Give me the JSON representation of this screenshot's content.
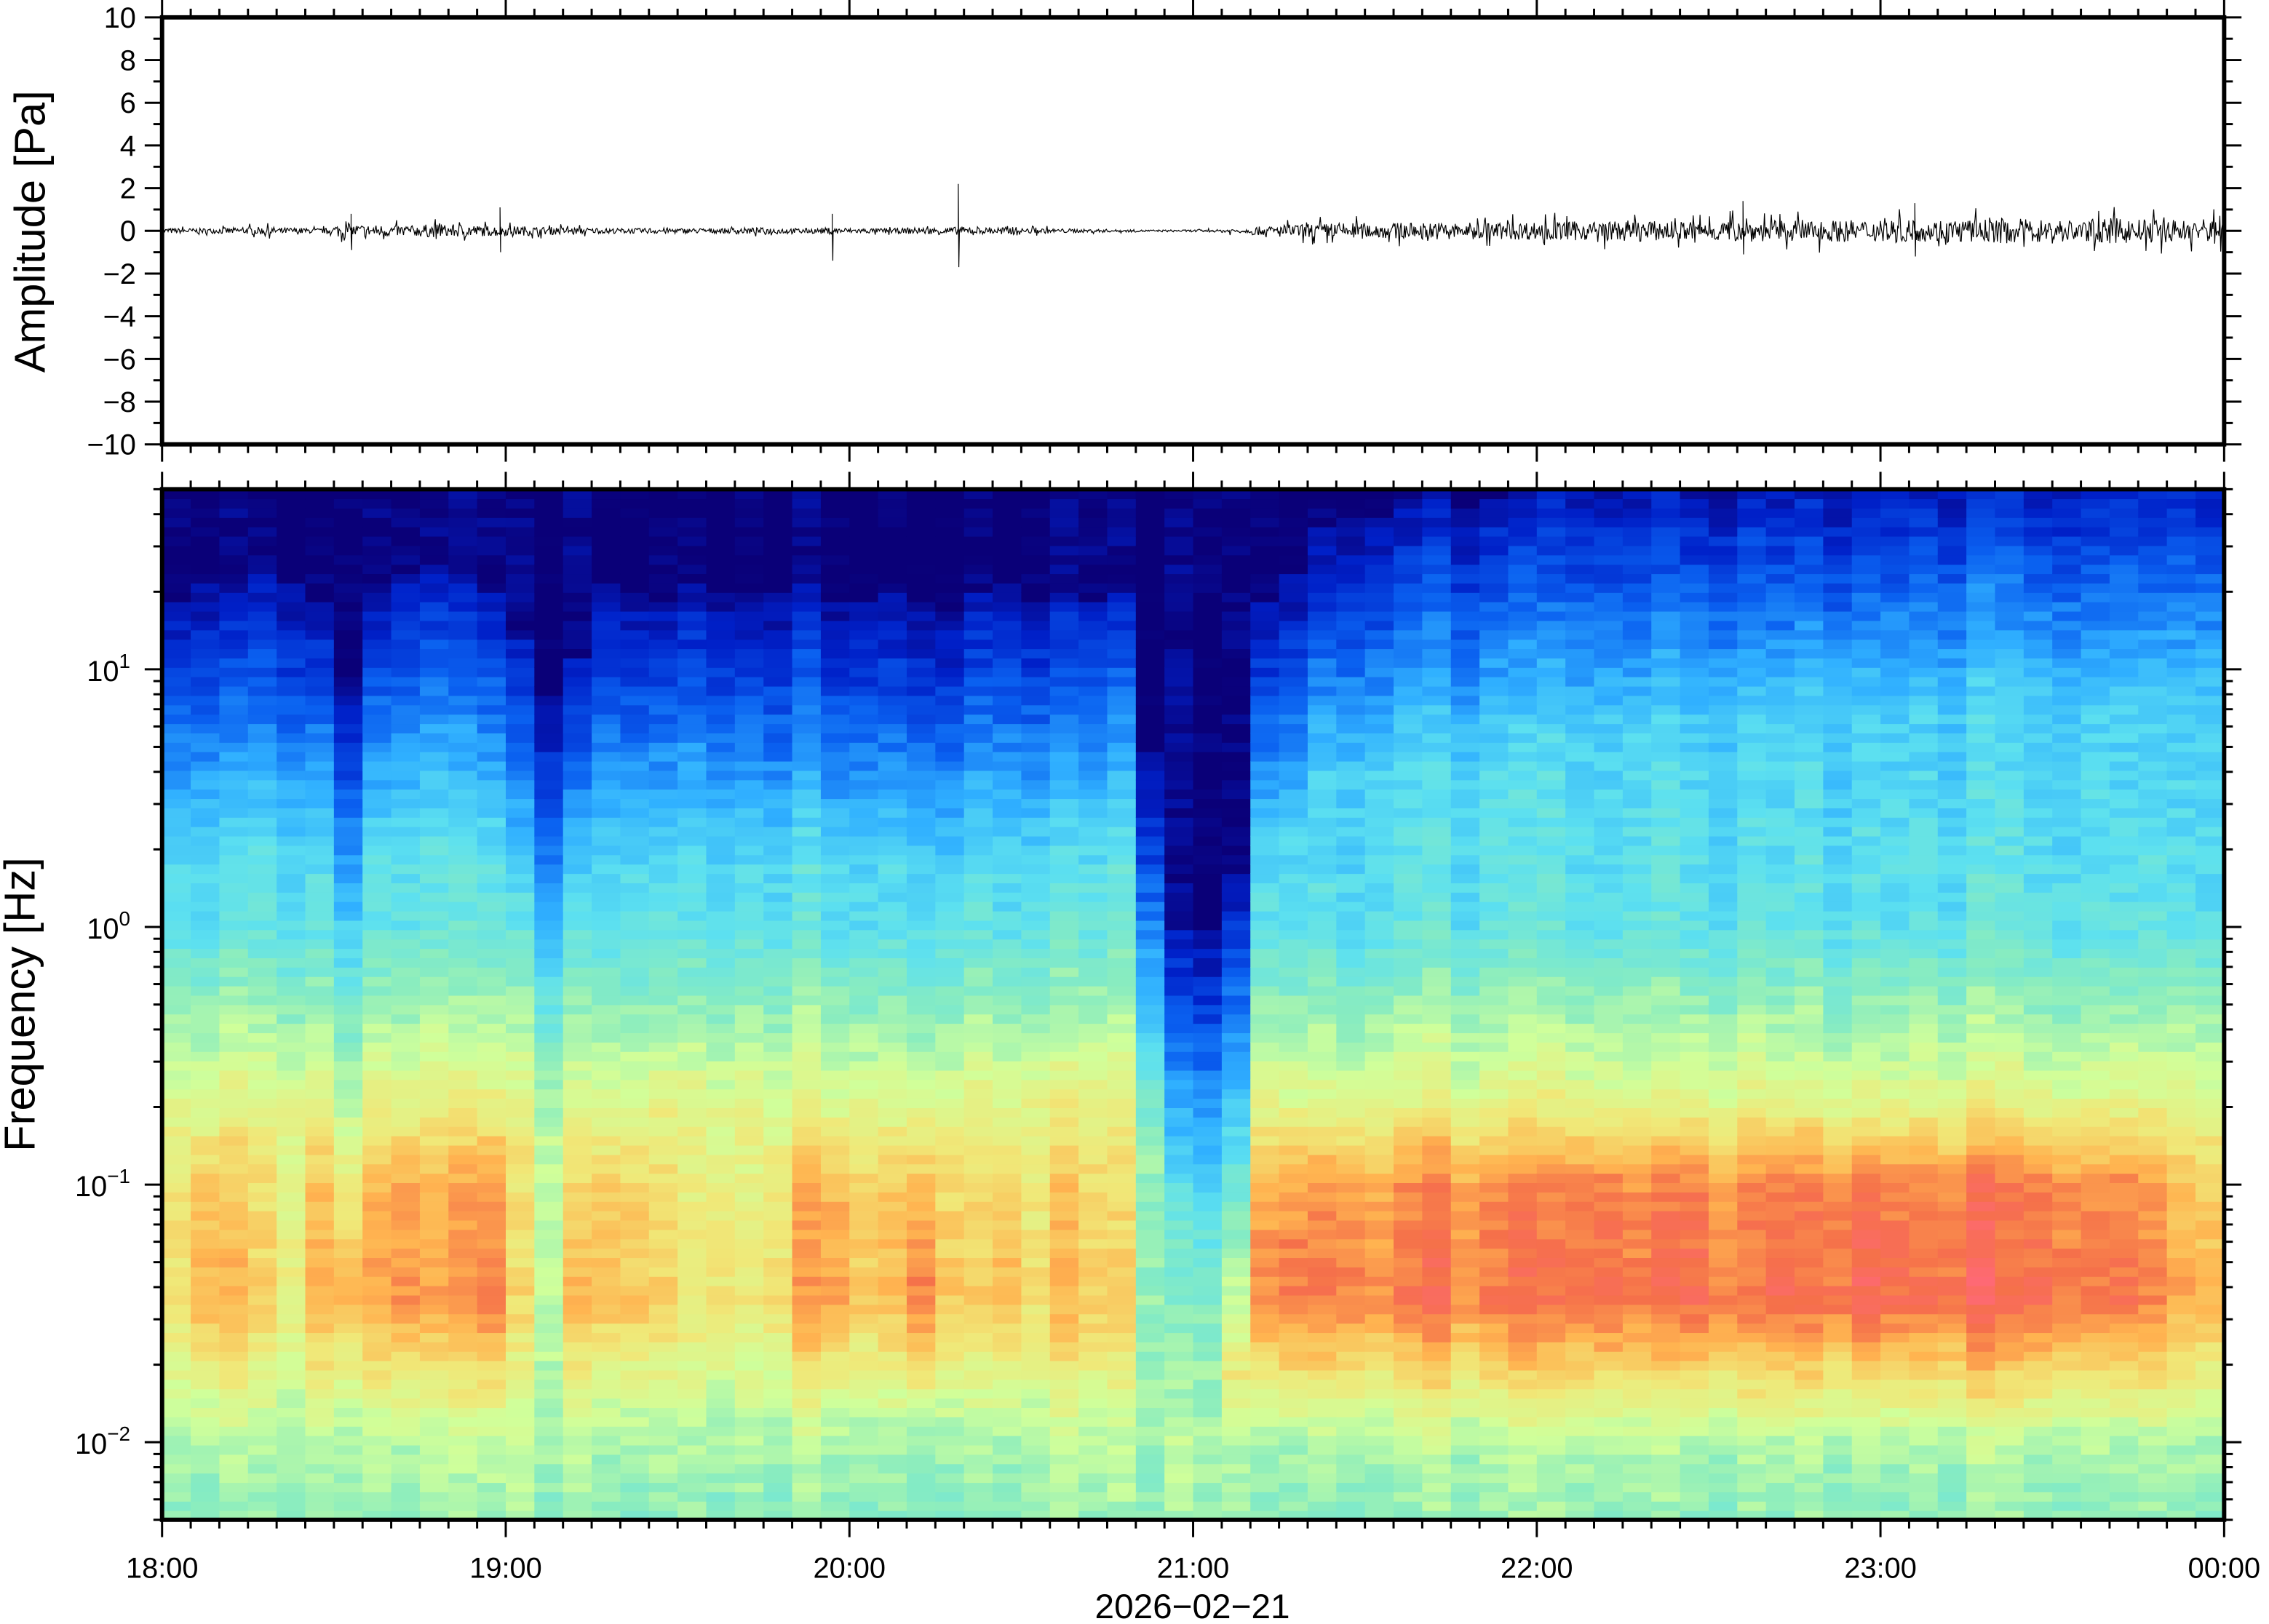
{
  "chart_data": [
    {
      "type": "line",
      "ylabel": "Amplitude [Pa]",
      "ylim": [
        -10,
        10
      ],
      "yticks": [
        "10",
        "8",
        "6",
        "4",
        "2",
        "0",
        "−2",
        "−4",
        "−6",
        "−8",
        "−10"
      ],
      "yticks_values": [
        10,
        8,
        6,
        4,
        2,
        0,
        -2,
        -4,
        -6,
        -8,
        -10
      ],
      "xlim": [
        "18:00",
        "00:00"
      ],
      "grid": false,
      "series_color": "#000000",
      "envelope_interval_minutes": 5,
      "envelope_pa": [
        0.12,
        0.12,
        0.15,
        0.18,
        0.15,
        0.12,
        0.3,
        0.28,
        0.25,
        0.3,
        0.3,
        0.25,
        0.22,
        0.18,
        0.15,
        0.12,
        0.12,
        0.14,
        0.12,
        0.12,
        0.15,
        0.15,
        0.12,
        0.15,
        0.12,
        0.12,
        0.15,
        0.18,
        0.15,
        0.18,
        0.12,
        0.1,
        0.08,
        0.06,
        0.05,
        0.05,
        0.06,
        0.1,
        0.2,
        0.3,
        0.35,
        0.38,
        0.35,
        0.38,
        0.4,
        0.38,
        0.4,
        0.42,
        0.45,
        0.45,
        0.45,
        0.5,
        0.45,
        0.45,
        0.5,
        0.5,
        0.48,
        0.52,
        0.5,
        0.5,
        0.55,
        0.5,
        0.55,
        0.55,
        0.6,
        0.55,
        0.55,
        0.55,
        0.6,
        0.55,
        0.55,
        0.6
      ],
      "spikes": [
        {
          "time": "18:33",
          "max": 0.8,
          "min": -0.9
        },
        {
          "time": "18:59",
          "max": 1.1,
          "min": -1.0
        },
        {
          "time": "19:57",
          "max": 0.8,
          "min": -1.4
        },
        {
          "time": "20:19",
          "max": 2.2,
          "min": -1.7
        },
        {
          "time": "22:36",
          "max": 1.4,
          "min": -1.1
        },
        {
          "time": "23:06",
          "max": 1.3,
          "min": -1.2
        }
      ]
    },
    {
      "type": "heatmap",
      "ylabel": "Frequency [Hz]",
      "yscale": "log",
      "ylim_hz": [
        0.005,
        50
      ],
      "yticks": [
        {
          "base": "10",
          "exp": "1"
        },
        {
          "base": "10",
          "exp": "0"
        },
        {
          "base": "10",
          "exp": "−1"
        },
        {
          "base": "10",
          "exp": "−2"
        }
      ],
      "yticks_values": [
        10,
        1,
        0.1,
        0.01
      ],
      "xlabel": "2026−02−21",
      "xticks": [
        "18:00",
        "19:00",
        "20:00",
        "21:00",
        "22:00",
        "23:00",
        "00:00"
      ],
      "colormap": [
        "#0a0078",
        "#0020c8",
        "#0a60f0",
        "#30b0ff",
        "#5ce0f0",
        "#88ecc0",
        "#d0ff9a",
        "#f0e878",
        "#ffb450",
        "#f5704a",
        "#ff6878"
      ],
      "column_interval_minutes": 5,
      "high_freq_cutoff_hz": [
        12,
        14,
        13,
        15,
        14,
        12,
        6,
        13,
        15,
        16,
        15,
        13,
        8,
        5,
        7,
        14,
        13,
        12,
        14,
        13,
        12,
        13,
        14,
        12,
        12,
        13,
        12,
        11,
        13,
        14,
        12,
        13,
        12,
        13,
        3,
        0.6,
        0.6,
        1.0,
        12,
        15,
        22,
        25,
        25,
        27,
        28,
        27,
        30,
        30,
        32,
        33,
        34,
        33,
        35,
        34,
        36,
        36,
        35,
        37,
        38,
        38,
        40,
        38,
        40,
        42,
        40,
        42,
        42,
        40,
        44,
        42,
        44,
        44
      ],
      "low_band_level": [
        0.72,
        0.8,
        0.78,
        0.74,
        0.7,
        0.8,
        0.78,
        0.82,
        0.84,
        0.8,
        0.83,
        0.86,
        0.7,
        0.6,
        0.76,
        0.8,
        0.78,
        0.74,
        0.7,
        0.72,
        0.68,
        0.74,
        0.82,
        0.84,
        0.78,
        0.8,
        0.9,
        0.78,
        0.74,
        0.8,
        0.72,
        0.78,
        0.74,
        0.72,
        0.55,
        0.45,
        0.5,
        0.82,
        0.86,
        0.9,
        0.88,
        0.9,
        0.86,
        0.88,
        0.9,
        0.86,
        0.88,
        0.9,
        0.88,
        0.9,
        0.92,
        0.88,
        0.9,
        0.92,
        0.9,
        0.88,
        0.92,
        0.9,
        0.92,
        0.94,
        0.92,
        0.9,
        0.92,
        0.94,
        0.9,
        0.92,
        0.9,
        0.88,
        0.9,
        0.86,
        0.82,
        0.8
      ]
    }
  ]
}
